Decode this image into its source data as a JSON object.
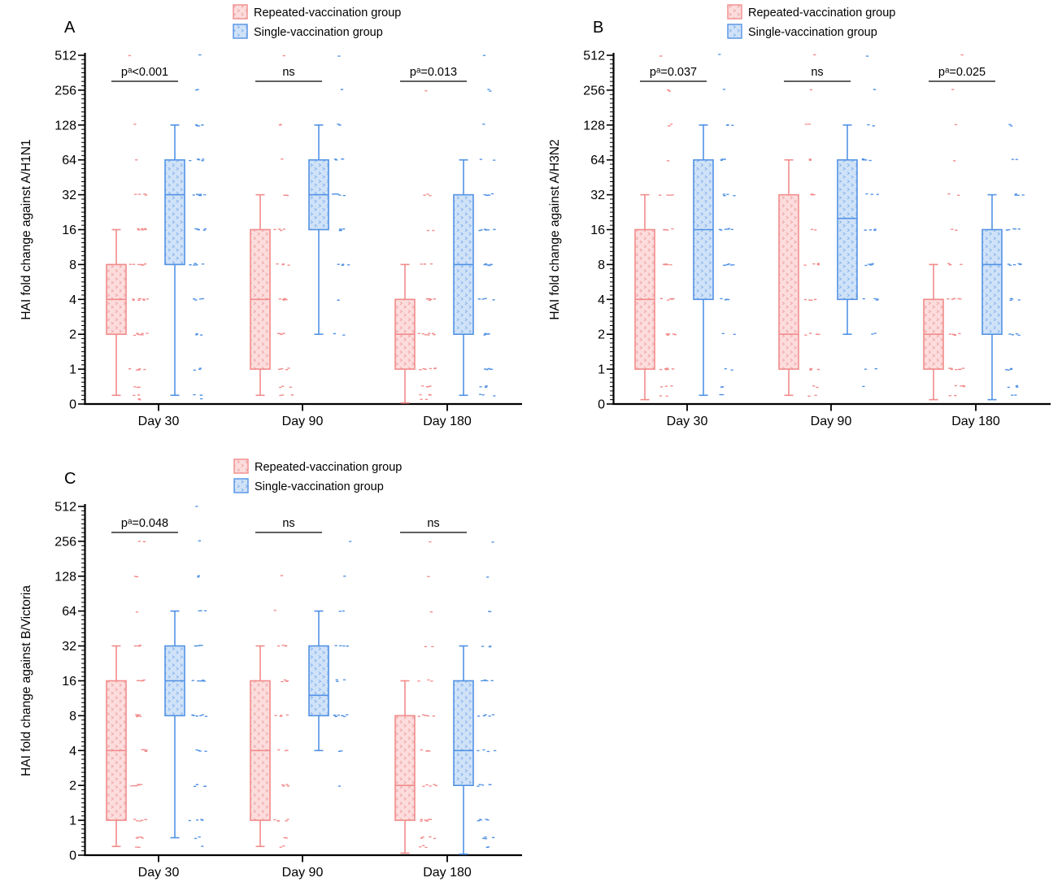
{
  "figure": {
    "kind": "three-panel box plot figure",
    "panel_letters": [
      "A",
      "B",
      "C"
    ]
  },
  "legend": {
    "items": [
      {
        "label": "Repeated-vaccination group",
        "edge": "#f28b8b",
        "fill": "#fcdcdc",
        "hatch": "#efa5a5"
      },
      {
        "label": "Single-vaccination group",
        "edge": "#5292e4",
        "fill": "#d0e2f7",
        "hatch": "#84b4ef"
      }
    ]
  },
  "chart_data": [
    {
      "panel": "A",
      "type": "boxplot",
      "scale": "log2 with compressed 0–1 segment",
      "ylabel": "HAI fold change against A/H1N1",
      "y_ticks": [
        "512",
        "256",
        "128",
        "64",
        "32",
        "16",
        "8",
        "4",
        "2",
        "1",
        "0"
      ],
      "ylim": [
        0,
        512
      ],
      "categories": [
        "Day 30",
        "Day 90",
        "Day 180"
      ],
      "significance": [
        "pᵃ<0.001",
        "ns",
        "pᵃ=0.013"
      ],
      "series": [
        {
          "name": "Repeated-vaccination group",
          "boxes": [
            {
              "category": "Day 30",
              "whisker_low": 0.25,
              "q1": 2,
              "median": 4,
              "q3": 8,
              "whisker_high": 16,
              "points": {
                "512": 1,
                "128": 1,
                "64": 1,
                "32": 4,
                "16": 6,
                "8": 7,
                "4": 8,
                "2": 7,
                "1": 5,
                "0.5": 3,
                "0.25": 2,
                "0.125": 2
              }
            },
            {
              "category": "Day 90",
              "whisker_low": 0.25,
              "q1": 1,
              "median": 4,
              "q3": 16,
              "whisker_high": 32,
              "points": {
                "512": 1,
                "128": 2,
                "64": 1,
                "32": 3,
                "16": 4,
                "8": 4,
                "4": 5,
                "2": 4,
                "1": 4,
                "0.5": 3,
                "0.25": 3
              }
            },
            {
              "category": "Day 180",
              "whisker_low": 0.03,
              "q1": 1,
              "median": 2,
              "q3": 4,
              "whisker_high": 8,
              "points": {
                "256": 1,
                "32": 3,
                "16": 2,
                "8": 3,
                "4": 6,
                "2": 7,
                "1": 6,
                "0.5": 4,
                "0.25": 3,
                "0.125": 2
              }
            }
          ]
        },
        {
          "name": "Single-vaccination group",
          "boxes": [
            {
              "category": "Day 30",
              "whisker_low": 0.25,
              "q1": 8,
              "median": 32,
              "q3": 64,
              "whisker_high": 128,
              "points": {
                "512": 1,
                "256": 2,
                "128": 4,
                "64": 5,
                "32": 7,
                "16": 6,
                "8": 5,
                "4": 4,
                "2": 3,
                "1": 3,
                "0.25": 2,
                "0.125": 1
              }
            },
            {
              "category": "Day 90",
              "whisker_low": 2,
              "q1": 16,
              "median": 32,
              "q3": 64,
              "whisker_high": 128,
              "points": {
                "512": 1,
                "256": 1,
                "128": 2,
                "64": 4,
                "32": 5,
                "16": 5,
                "8": 4,
                "4": 1,
                "2": 2
              }
            },
            {
              "category": "Day 180",
              "whisker_low": 0.25,
              "q1": 2,
              "median": 8,
              "q3": 32,
              "whisker_high": 64,
              "points": {
                "512": 1,
                "256": 2,
                "128": 1,
                "64": 2,
                "32": 5,
                "16": 6,
                "8": 6,
                "4": 4,
                "2": 5,
                "1": 5,
                "0.5": 3,
                "0.25": 3
              }
            }
          ]
        }
      ]
    },
    {
      "panel": "B",
      "type": "boxplot",
      "scale": "log2 with compressed 0–1 segment",
      "ylabel": "HAI fold change against A/H3N2",
      "y_ticks": [
        "512",
        "256",
        "128",
        "64",
        "32",
        "16",
        "8",
        "4",
        "2",
        "1",
        "0"
      ],
      "ylim": [
        0,
        512
      ],
      "categories": [
        "Day 30",
        "Day 90",
        "Day 180"
      ],
      "significance": [
        "pᵃ=0.037",
        "ns",
        "pᵃ=0.025"
      ],
      "series": [
        {
          "name": "Repeated-vaccination group",
          "boxes": [
            {
              "category": "Day 30",
              "whisker_low": 0.125,
              "q1": 1,
              "median": 4,
              "q3": 16,
              "whisker_high": 32,
              "points": {
                "512": 1,
                "256": 2,
                "128": 2,
                "64": 1,
                "32": 4,
                "16": 5,
                "8": 5,
                "4": 6,
                "2": 6,
                "1": 6,
                "0.5": 3,
                "0.25": 2
              }
            },
            {
              "category": "Day 90",
              "whisker_low": 0.25,
              "q1": 1,
              "median": 2,
              "q3": 32,
              "whisker_high": 64,
              "points": {
                "512": 1,
                "256": 1,
                "128": 2,
                "64": 2,
                "32": 3,
                "16": 2,
                "8": 4,
                "4": 4,
                "2": 4,
                "1": 4,
                "0.5": 2,
                "0.25": 2
              }
            },
            {
              "category": "Day 180",
              "whisker_low": 0.125,
              "q1": 1,
              "median": 2,
              "q3": 4,
              "whisker_high": 8,
              "points": {
                "512": 1,
                "256": 1,
                "128": 1,
                "64": 1,
                "32": 2,
                "16": 2,
                "8": 4,
                "4": 5,
                "2": 6,
                "1": 7,
                "0.5": 4,
                "0.25": 2
              }
            }
          ]
        },
        {
          "name": "Single-vaccination group",
          "boxes": [
            {
              "category": "Day 30",
              "whisker_low": 0.25,
              "q1": 4,
              "median": 16,
              "q3": 64,
              "whisker_high": 128,
              "points": {
                "512": 1,
                "256": 1,
                "128": 3,
                "64": 4,
                "32": 4,
                "16": 6,
                "8": 6,
                "4": 4,
                "2": 2,
                "1": 2,
                "0.5": 2,
                "0.25": 2
              }
            },
            {
              "category": "Day 90",
              "whisker_low": 2,
              "q1": 4,
              "median": 20,
              "q3": 64,
              "whisker_high": 128,
              "points": {
                "512": 1,
                "256": 1,
                "128": 2,
                "64": 5,
                "32": 3,
                "16": 4,
                "8": 5,
                "4": 4,
                "2": 2,
                "1": 2,
                "0.5": 1
              }
            },
            {
              "category": "Day 180",
              "whisker_low": 0.125,
              "q1": 2,
              "median": 8,
              "q3": 16,
              "whisker_high": 32,
              "points": {
                "128": 2,
                "64": 2,
                "32": 4,
                "16": 5,
                "8": 6,
                "4": 4,
                "2": 4,
                "1": 4,
                "0.5": 3,
                "0.25": 2
              }
            }
          ]
        }
      ]
    },
    {
      "panel": "C",
      "type": "boxplot",
      "scale": "log2 with compressed 0–1 segment",
      "ylabel": "HAI fold change against B/Victoria",
      "y_ticks": [
        "512",
        "256",
        "128",
        "64",
        "32",
        "16",
        "8",
        "4",
        "2",
        "1",
        "0"
      ],
      "ylim": [
        0,
        512
      ],
      "categories": [
        "Day 30",
        "Day 90",
        "Day 180"
      ],
      "significance": [
        "pᵃ=0.048",
        "ns",
        "ns"
      ],
      "series": [
        {
          "name": "Repeated-vaccination group",
          "boxes": [
            {
              "category": "Day 30",
              "whisker_low": 0.25,
              "q1": 1,
              "median": 4,
              "q3": 16,
              "whisker_high": 32,
              "points": {
                "256": 2,
                "128": 2,
                "64": 1,
                "32": 4,
                "16": 5,
                "8": 5,
                "4": 5,
                "2": 6,
                "1": 6,
                "0.5": 4,
                "0.25": 3
              }
            },
            {
              "category": "Day 90",
              "whisker_low": 0.25,
              "q1": 1,
              "median": 4,
              "q3": 16,
              "whisker_high": 32,
              "points": {
                "128": 1,
                "64": 1,
                "32": 4,
                "16": 4,
                "8": 4,
                "4": 4,
                "2": 4,
                "1": 5,
                "0.5": 2,
                "0.25": 2
              }
            },
            {
              "category": "Day 180",
              "whisker_low": 0.06,
              "q1": 1,
              "median": 2,
              "q3": 8,
              "whisker_high": 16,
              "points": {
                "256": 1,
                "128": 1,
                "64": 1,
                "32": 2,
                "16": 3,
                "8": 5,
                "4": 4,
                "2": 5,
                "1": 7,
                "0.5": 4,
                "0.25": 3
              }
            }
          ]
        },
        {
          "name": "Single-vaccination group",
          "boxes": [
            {
              "category": "Day 30",
              "whisker_low": 0.5,
              "q1": 8,
              "median": 16,
              "q3": 32,
              "whisker_high": 64,
              "points": {
                "512": 1,
                "256": 1,
                "128": 2,
                "64": 3,
                "32": 5,
                "16": 6,
                "8": 6,
                "4": 4,
                "2": 4,
                "1": 4,
                "0.5": 2,
                "0.25": 1
              }
            },
            {
              "category": "Day 90",
              "whisker_low": 4,
              "q1": 8,
              "median": 12,
              "q3": 32,
              "whisker_high": 64,
              "points": {
                "256": 1,
                "128": 1,
                "64": 2,
                "32": 4,
                "16": 3,
                "8": 7,
                "4": 2,
                "2": 1
              }
            },
            {
              "category": "Day 180",
              "whisker_low": 0.03,
              "q1": 2,
              "median": 4,
              "q3": 16,
              "whisker_high": 32,
              "points": {
                "256": 1,
                "128": 1,
                "64": 2,
                "32": 3,
                "16": 5,
                "8": 5,
                "4": 4,
                "2": 5,
                "1": 5,
                "0.5": 4,
                "0.25": 2
              }
            }
          ]
        }
      ]
    }
  ]
}
